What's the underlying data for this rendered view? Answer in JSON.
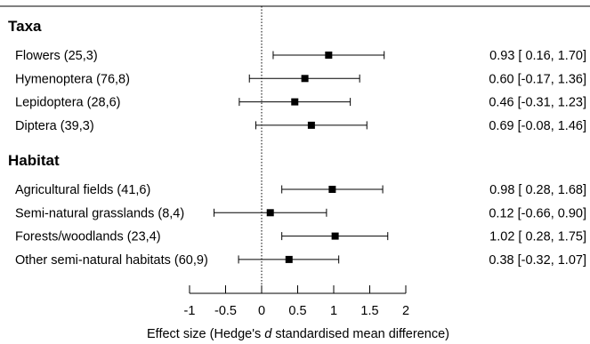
{
  "chart_data": {
    "type": "forest",
    "xlabel_parts": [
      {
        "text": "Effect size (Hedge's ",
        "italic": false
      },
      {
        "text": "d",
        "italic": true
      },
      {
        "text": " standardised mean difference)",
        "italic": false
      }
    ],
    "xlim": [
      -1,
      2
    ],
    "xticks": [
      -1,
      -0.5,
      0,
      0.5,
      1,
      1.5,
      2
    ],
    "xtick_labels": [
      "-1",
      "-0.5",
      "0",
      "0.5",
      "1",
      "1.5",
      "2"
    ],
    "reference_line": 0,
    "groups": [
      {
        "name": "Taxa",
        "rows": [
          {
            "label": "Flowers (25,3)",
            "estimate": 0.93,
            "lower": 0.16,
            "upper": 1.7,
            "value_text": "0.93 [ 0.16, 1.70]"
          },
          {
            "label": "Hymenoptera (76,8)",
            "estimate": 0.6,
            "lower": -0.17,
            "upper": 1.36,
            "value_text": "0.60 [-0.17, 1.36]"
          },
          {
            "label": "Lepidoptera (28,6)",
            "estimate": 0.46,
            "lower": -0.31,
            "upper": 1.23,
            "value_text": "0.46 [-0.31, 1.23]"
          },
          {
            "label": "Diptera (39,3)",
            "estimate": 0.69,
            "lower": -0.08,
            "upper": 1.46,
            "value_text": "0.69 [-0.08, 1.46]"
          }
        ]
      },
      {
        "name": "Habitat",
        "rows": [
          {
            "label": "Agricultural fields (41,6)",
            "estimate": 0.98,
            "lower": 0.28,
            "upper": 1.68,
            "value_text": "0.98 [ 0.28, 1.68]"
          },
          {
            "label": "Semi-natural grasslands (8,4)",
            "estimate": 0.12,
            "lower": -0.66,
            "upper": 0.9,
            "value_text": "0.12 [-0.66, 0.90]"
          },
          {
            "label": "Forests/woodlands (23,4)",
            "estimate": 1.02,
            "lower": 0.28,
            "upper": 1.75,
            "value_text": "1.02 [ 0.28, 1.75]"
          },
          {
            "label": "Other semi-natural habitats (60,9)",
            "estimate": 0.38,
            "lower": -0.32,
            "upper": 1.07,
            "value_text": "0.38 [-0.32, 1.07]"
          }
        ]
      }
    ]
  }
}
